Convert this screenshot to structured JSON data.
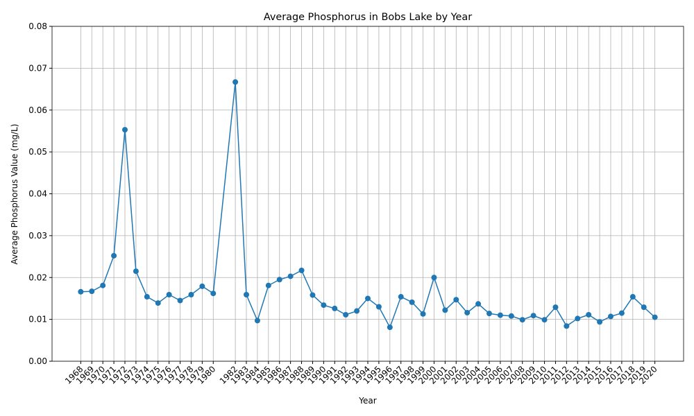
{
  "chart_data": {
    "type": "line",
    "title": "Average Phosphorus in Bobs Lake by Year",
    "xlabel": "Year",
    "ylabel": "Average Phosphorus Value (mg/L)",
    "x": [
      1968,
      1969,
      1970,
      1971,
      1972,
      1973,
      1974,
      1975,
      1976,
      1977,
      1978,
      1979,
      1980,
      1982,
      1983,
      1984,
      1985,
      1986,
      1987,
      1988,
      1989,
      1990,
      1991,
      1992,
      1993,
      1994,
      1995,
      1996,
      1997,
      1998,
      1999,
      2000,
      2001,
      2002,
      2003,
      2004,
      2005,
      2006,
      2007,
      2008,
      2009,
      2010,
      2011,
      2012,
      2013,
      2014,
      2015,
      2016,
      2017,
      2018,
      2019,
      2020
    ],
    "series": [
      {
        "name": "Average Phosphorus",
        "color": "#1f77b4",
        "values": [
          0.0166,
          0.0167,
          0.0181,
          0.0252,
          0.0553,
          0.0215,
          0.0154,
          0.0139,
          0.0159,
          0.0145,
          0.0159,
          0.0179,
          0.0162,
          0.0667,
          0.0159,
          0.0097,
          0.0181,
          0.0195,
          0.0203,
          0.0217,
          0.0158,
          0.0134,
          0.0126,
          0.0111,
          0.012,
          0.015,
          0.013,
          0.0081,
          0.0154,
          0.0141,
          0.0113,
          0.02,
          0.0122,
          0.0147,
          0.0116,
          0.0137,
          0.0114,
          0.011,
          0.0108,
          0.0099,
          0.0109,
          0.0099,
          0.0129,
          0.0084,
          0.0102,
          0.0111,
          0.0094,
          0.0107,
          0.0115,
          0.0154,
          0.0129,
          0.0105
        ]
      }
    ],
    "xlim": [
      1965.4,
      2022.6
    ],
    "xticks": [
      1968,
      1969,
      1970,
      1971,
      1972,
      1973,
      1974,
      1975,
      1976,
      1977,
      1978,
      1979,
      1980,
      1982,
      1983,
      1984,
      1985,
      1986,
      1987,
      1988,
      1989,
      1990,
      1991,
      1992,
      1993,
      1994,
      1995,
      1996,
      1997,
      1998,
      1999,
      2000,
      2001,
      2002,
      2003,
      2004,
      2005,
      2006,
      2007,
      2008,
      2009,
      2010,
      2011,
      2012,
      2013,
      2014,
      2015,
      2016,
      2017,
      2018,
      2019,
      2020
    ],
    "ylim": [
      0,
      0.08
    ],
    "yticks": [
      {
        "value": 0,
        "label": "0.00"
      },
      0.01,
      0.02,
      0.03,
      0.04,
      0.05,
      0.06,
      0.07,
      0.08
    ],
    "grid": true
  }
}
